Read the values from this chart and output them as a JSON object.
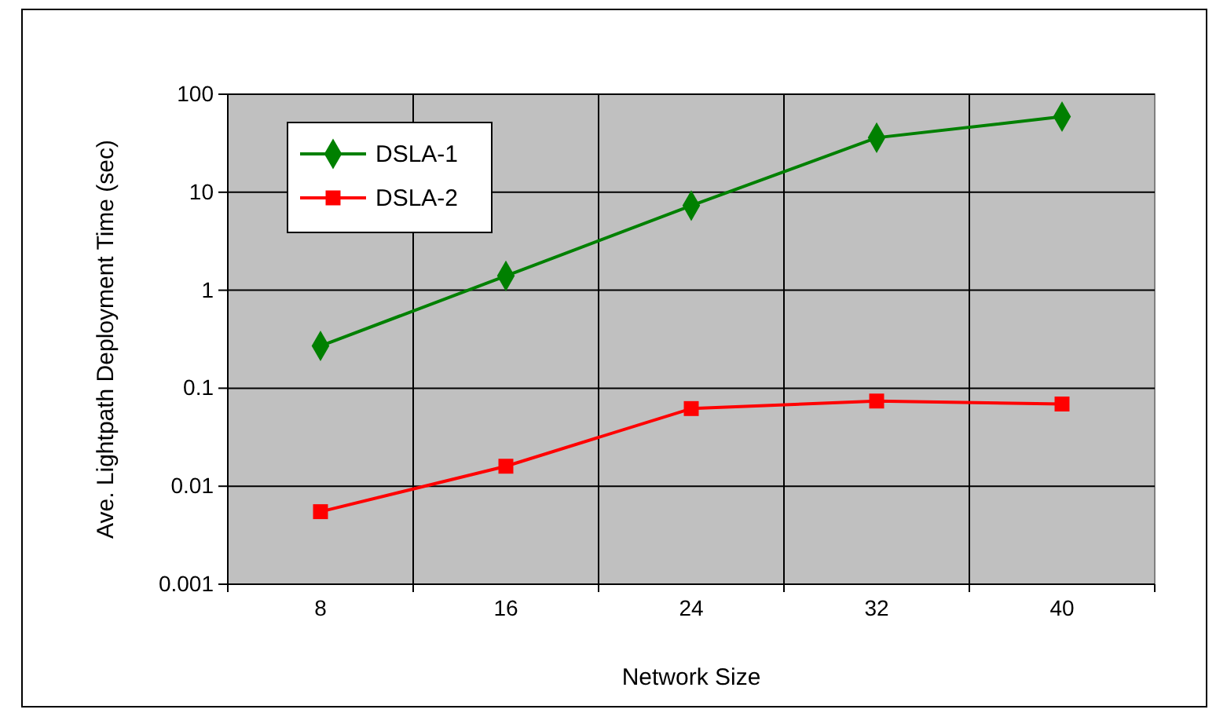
{
  "chart_data": {
    "type": "line",
    "xlabel": "Network Size",
    "ylabel": "Ave. Lightpath Deployment Time (sec)",
    "categories": [
      "8",
      "16",
      "24",
      "32",
      "40"
    ],
    "series": [
      {
        "name": "DSLA-1",
        "color": "#008000",
        "marker": "diamond",
        "values": [
          0.27,
          1.4,
          7.3,
          36,
          59
        ]
      },
      {
        "name": "DSLA-2",
        "color": "#ff0000",
        "marker": "square",
        "values": [
          0.0055,
          0.016,
          0.062,
          0.074,
          0.069
        ]
      }
    ],
    "log": "y",
    "ylim": [
      0.001,
      100
    ],
    "yticks": [
      0.001,
      0.01,
      0.1,
      1,
      10,
      100
    ],
    "grid": true,
    "legend": "top left"
  }
}
